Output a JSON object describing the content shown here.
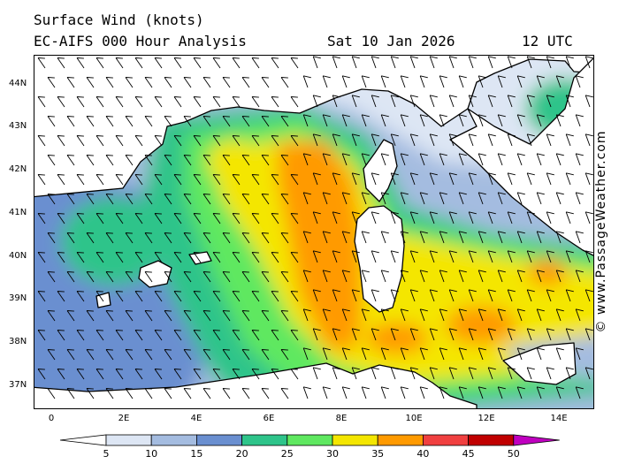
{
  "title": {
    "line1": "Surface Wind (knots)",
    "line2": "EC-AIFS 000 Hour Analysis",
    "date": "Sat 10 Jan 2026",
    "time": "12 UTC"
  },
  "credit": "© www.PassageWeather.com",
  "map": {
    "lon_range": [
      -0.5,
      15
    ],
    "lat_range": [
      36.5,
      44.8
    ],
    "lat_labels": [
      "44N",
      "43N",
      "42N",
      "41N",
      "40N",
      "39N",
      "38N",
      "37N"
    ],
    "lon_labels": [
      "0",
      "2E",
      "4E",
      "6E",
      "8E",
      "10E",
      "12E",
      "14E"
    ],
    "land_color": "#ffffff",
    "coastline_color": "#000000",
    "barb_color": "#000000"
  },
  "colorbar": {
    "labels": [
      "5",
      "10",
      "15",
      "20",
      "25",
      "30",
      "35",
      "40",
      "45",
      "50"
    ],
    "colors": [
      "#ffffff",
      "#dde6f4",
      "#a4bce0",
      "#6a8fd0",
      "#2ec48a",
      "#5fe860",
      "#f4e600",
      "#ff9a00",
      "#f04040",
      "#c00000",
      "#c000c0"
    ]
  }
}
